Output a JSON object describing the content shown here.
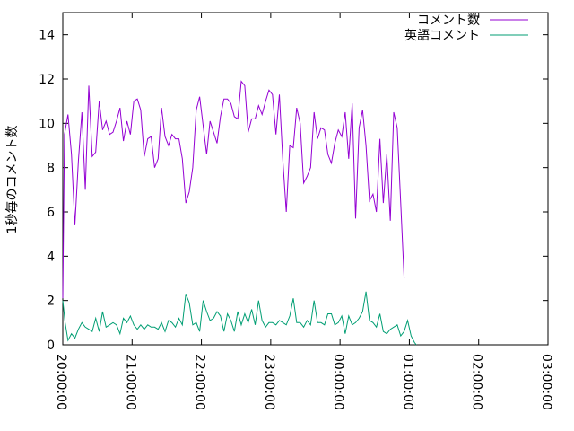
{
  "chart_data": {
    "type": "line",
    "title": "",
    "xlabel": "",
    "ylabel": "1秒毎のコメント数",
    "xlim": [
      "20:00:00",
      "03:00:00"
    ],
    "x_tick_labels": [
      "20:00:00",
      "21:00:00",
      "22:00:00",
      "23:00:00",
      "00:00:00",
      "01:00:00",
      "02:00:00",
      "03:00:00"
    ],
    "ylim": [
      0,
      15
    ],
    "y_ticks": [
      0,
      2,
      4,
      6,
      8,
      10,
      12,
      14
    ],
    "grid": false,
    "legend_position": "top-right",
    "series": [
      {
        "name": "コメント数",
        "color": "#9400d3",
        "points": [
          [
            "20:00:00",
            2.1
          ],
          [
            "20:01:30",
            9.5
          ],
          [
            "20:04:30",
            10.4
          ],
          [
            "20:07:30",
            8.6
          ],
          [
            "20:10:30",
            5.4
          ],
          [
            "20:13:30",
            8.3
          ],
          [
            "20:16:30",
            10.5
          ],
          [
            "20:19:30",
            7.0
          ],
          [
            "20:22:30",
            11.7
          ],
          [
            "20:25:30",
            8.5
          ],
          [
            "20:28:30",
            8.7
          ],
          [
            "20:31:30",
            11.0
          ],
          [
            "20:34:30",
            9.7
          ],
          [
            "20:37:30",
            10.1
          ],
          [
            "20:40:30",
            9.5
          ],
          [
            "20:43:30",
            9.6
          ],
          [
            "20:46:30",
            10.1
          ],
          [
            "20:49:30",
            10.7
          ],
          [
            "20:52:30",
            9.2
          ],
          [
            "20:55:30",
            10.1
          ],
          [
            "20:58:30",
            9.5
          ],
          [
            "21:01:30",
            11.0
          ],
          [
            "21:04:30",
            11.1
          ],
          [
            "21:07:30",
            10.6
          ],
          [
            "21:10:30",
            8.5
          ],
          [
            "21:13:30",
            9.3
          ],
          [
            "21:16:30",
            9.4
          ],
          [
            "21:19:30",
            8.0
          ],
          [
            "21:22:30",
            8.4
          ],
          [
            "21:25:30",
            10.7
          ],
          [
            "21:28:30",
            9.4
          ],
          [
            "21:31:30",
            9.0
          ],
          [
            "21:34:30",
            9.5
          ],
          [
            "21:37:30",
            9.3
          ],
          [
            "21:40:30",
            9.3
          ],
          [
            "21:43:30",
            8.4
          ],
          [
            "21:46:30",
            6.4
          ],
          [
            "21:49:30",
            6.9
          ],
          [
            "21:52:30",
            8.0
          ],
          [
            "21:55:30",
            10.6
          ],
          [
            "21:58:30",
            11.2
          ],
          [
            "22:01:30",
            9.9
          ],
          [
            "22:04:30",
            8.6
          ],
          [
            "22:07:30",
            10.1
          ],
          [
            "22:10:30",
            9.6
          ],
          [
            "22:13:30",
            9.1
          ],
          [
            "22:16:30",
            10.3
          ],
          [
            "22:19:30",
            11.1
          ],
          [
            "22:22:30",
            11.1
          ],
          [
            "22:25:30",
            10.9
          ],
          [
            "22:28:30",
            10.3
          ],
          [
            "22:31:30",
            10.2
          ],
          [
            "22:34:30",
            11.9
          ],
          [
            "22:37:30",
            11.7
          ],
          [
            "22:40:30",
            9.6
          ],
          [
            "22:43:30",
            10.2
          ],
          [
            "22:46:30",
            10.2
          ],
          [
            "22:49:30",
            10.8
          ],
          [
            "22:52:30",
            10.4
          ],
          [
            "22:55:30",
            11.0
          ],
          [
            "22:58:30",
            11.5
          ],
          [
            "23:01:30",
            11.3
          ],
          [
            "23:04:30",
            9.5
          ],
          [
            "23:07:30",
            11.3
          ],
          [
            "23:10:30",
            8.3
          ],
          [
            "23:13:30",
            6.0
          ],
          [
            "23:16:30",
            9.0
          ],
          [
            "23:19:30",
            8.9
          ],
          [
            "23:22:30",
            10.7
          ],
          [
            "23:25:30",
            10.0
          ],
          [
            "23:28:30",
            7.3
          ],
          [
            "23:31:30",
            7.6
          ],
          [
            "23:34:30",
            8.0
          ],
          [
            "23:37:30",
            10.5
          ],
          [
            "23:40:30",
            9.3
          ],
          [
            "23:43:30",
            9.8
          ],
          [
            "23:46:30",
            9.7
          ],
          [
            "23:49:30",
            8.6
          ],
          [
            "23:52:30",
            8.2
          ],
          [
            "23:55:30",
            9.1
          ],
          [
            "23:58:30",
            9.7
          ],
          [
            "00:01:30",
            9.4
          ],
          [
            "00:04:30",
            10.5
          ],
          [
            "00:07:30",
            8.4
          ],
          [
            "00:10:30",
            10.9
          ],
          [
            "00:13:30",
            5.7
          ],
          [
            "00:16:30",
            9.8
          ],
          [
            "00:19:30",
            10.6
          ],
          [
            "00:22:30",
            9.0
          ],
          [
            "00:25:30",
            6.5
          ],
          [
            "00:28:30",
            6.8
          ],
          [
            "00:31:30",
            6.0
          ],
          [
            "00:34:30",
            9.3
          ],
          [
            "00:37:30",
            6.4
          ],
          [
            "00:40:30",
            8.6
          ],
          [
            "00:43:30",
            5.6
          ],
          [
            "00:46:30",
            10.5
          ],
          [
            "00:49:30",
            9.8
          ],
          [
            "00:52:30",
            6.4
          ],
          [
            "00:55:30",
            3.0
          ]
        ]
      },
      {
        "name": "英語コメント",
        "color": "#009e73",
        "points": [
          [
            "20:00:00",
            2.0
          ],
          [
            "20:02:00",
            1.0
          ],
          [
            "20:04:30",
            0.2
          ],
          [
            "20:07:30",
            0.5
          ],
          [
            "20:10:30",
            0.3
          ],
          [
            "20:13:30",
            0.7
          ],
          [
            "20:16:30",
            1.0
          ],
          [
            "20:19:30",
            0.8
          ],
          [
            "20:22:30",
            0.7
          ],
          [
            "20:25:30",
            0.6
          ],
          [
            "20:28:30",
            1.2
          ],
          [
            "20:31:30",
            0.6
          ],
          [
            "20:34:30",
            1.5
          ],
          [
            "20:37:30",
            0.8
          ],
          [
            "20:40:30",
            0.9
          ],
          [
            "20:43:30",
            1.0
          ],
          [
            "20:46:30",
            0.9
          ],
          [
            "20:49:30",
            0.5
          ],
          [
            "20:52:30",
            1.2
          ],
          [
            "20:55:30",
            1.0
          ],
          [
            "20:58:30",
            1.3
          ],
          [
            "21:01:30",
            0.9
          ],
          [
            "21:04:30",
            0.7
          ],
          [
            "21:07:30",
            0.9
          ],
          [
            "21:10:30",
            0.7
          ],
          [
            "21:13:30",
            0.9
          ],
          [
            "21:16:30",
            0.8
          ],
          [
            "21:19:30",
            0.8
          ],
          [
            "21:22:30",
            0.7
          ],
          [
            "21:25:30",
            1.0
          ],
          [
            "21:28:30",
            0.6
          ],
          [
            "21:31:30",
            1.1
          ],
          [
            "21:34:30",
            1.0
          ],
          [
            "21:37:30",
            0.8
          ],
          [
            "21:40:30",
            1.2
          ],
          [
            "21:43:30",
            0.9
          ],
          [
            "21:46:30",
            2.3
          ],
          [
            "21:49:30",
            1.9
          ],
          [
            "21:52:30",
            0.9
          ],
          [
            "21:55:30",
            1.0
          ],
          [
            "21:58:30",
            0.6
          ],
          [
            "22:01:30",
            2.0
          ],
          [
            "22:04:30",
            1.5
          ],
          [
            "22:07:30",
            1.1
          ],
          [
            "22:10:30",
            1.2
          ],
          [
            "22:13:30",
            1.5
          ],
          [
            "22:16:30",
            1.3
          ],
          [
            "22:19:30",
            0.6
          ],
          [
            "22:22:30",
            1.4
          ],
          [
            "22:25:30",
            1.1
          ],
          [
            "22:28:30",
            0.6
          ],
          [
            "22:31:30",
            1.5
          ],
          [
            "22:34:30",
            0.9
          ],
          [
            "22:37:30",
            1.4
          ],
          [
            "22:40:30",
            1.0
          ],
          [
            "22:43:30",
            1.6
          ],
          [
            "22:46:30",
            0.9
          ],
          [
            "22:49:30",
            2.0
          ],
          [
            "22:52:30",
            1.1
          ],
          [
            "22:55:30",
            0.8
          ],
          [
            "22:58:30",
            1.0
          ],
          [
            "23:01:30",
            1.0
          ],
          [
            "23:04:30",
            0.9
          ],
          [
            "23:07:30",
            1.1
          ],
          [
            "23:10:30",
            1.0
          ],
          [
            "23:13:30",
            0.9
          ],
          [
            "23:16:30",
            1.3
          ],
          [
            "23:19:30",
            2.1
          ],
          [
            "23:22:30",
            1.0
          ],
          [
            "23:25:30",
            1.0
          ],
          [
            "23:28:30",
            0.8
          ],
          [
            "23:31:30",
            1.1
          ],
          [
            "23:34:30",
            0.9
          ],
          [
            "23:37:30",
            2.0
          ],
          [
            "23:40:30",
            1.0
          ],
          [
            "23:43:30",
            1.0
          ],
          [
            "23:46:30",
            0.9
          ],
          [
            "23:49:30",
            1.4
          ],
          [
            "23:52:30",
            1.4
          ],
          [
            "23:55:30",
            0.9
          ],
          [
            "23:58:30",
            1.0
          ],
          [
            "00:01:30",
            1.3
          ],
          [
            "00:04:30",
            0.5
          ],
          [
            "00:07:30",
            1.3
          ],
          [
            "00:10:30",
            0.9
          ],
          [
            "00:13:30",
            1.0
          ],
          [
            "00:16:30",
            1.2
          ],
          [
            "00:19:30",
            1.5
          ],
          [
            "00:22:30",
            2.4
          ],
          [
            "00:25:30",
            1.1
          ],
          [
            "00:28:30",
            1.0
          ],
          [
            "00:31:30",
            0.8
          ],
          [
            "00:34:30",
            1.4
          ],
          [
            "00:37:30",
            0.6
          ],
          [
            "00:40:30",
            0.5
          ],
          [
            "00:43:30",
            0.7
          ],
          [
            "00:46:30",
            0.8
          ],
          [
            "00:49:30",
            0.9
          ],
          [
            "00:52:30",
            0.4
          ],
          [
            "00:55:30",
            0.6
          ],
          [
            "00:58:30",
            1.1
          ],
          [
            "01:01:30",
            0.4
          ],
          [
            "01:04:30",
            0.1
          ],
          [
            "01:06:00",
            0.0
          ]
        ]
      }
    ]
  }
}
